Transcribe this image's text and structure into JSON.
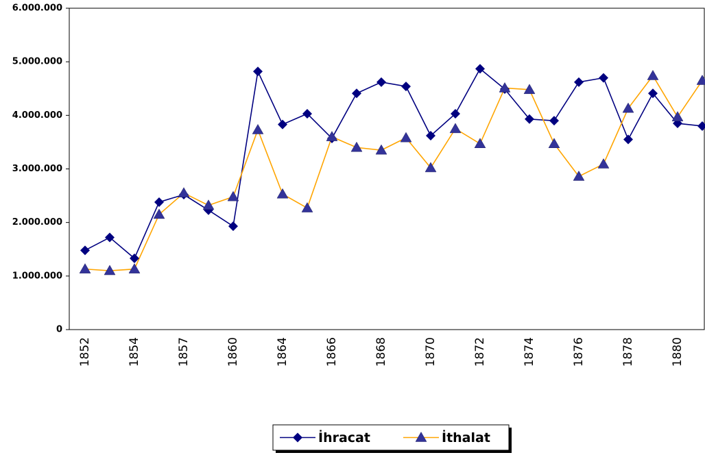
{
  "chart_data": {
    "type": "line",
    "categories": [
      "1852",
      null,
      "1854",
      null,
      "1857",
      null,
      "1860",
      null,
      "1864",
      null,
      "1866",
      null,
      "1868",
      null,
      "1870",
      null,
      "1872",
      null,
      "1874",
      null,
      "1876",
      null,
      "1878",
      null,
      "1880",
      null
    ],
    "series": [
      {
        "name": "İhracat",
        "color": "#000080",
        "marker": "diamond",
        "marker_color": "#000080",
        "values": [
          1480000,
          1720000,
          1330000,
          2380000,
          2520000,
          2230000,
          1930000,
          4820000,
          3830000,
          4030000,
          3570000,
          4410000,
          4620000,
          4540000,
          3620000,
          4030000,
          4870000,
          4490000,
          3930000,
          3900000,
          4620000,
          4700000,
          3550000,
          4410000,
          3850000,
          3800000
        ]
      },
      {
        "name": "İthalat",
        "color": "#FFA500",
        "marker": "triangle",
        "marker_color": "#333399",
        "values": [
          1130000,
          1100000,
          1130000,
          2150000,
          2550000,
          2320000,
          2480000,
          3730000,
          2530000,
          2270000,
          3600000,
          3400000,
          3350000,
          3580000,
          3020000,
          3750000,
          3470000,
          4510000,
          4480000,
          3470000,
          2860000,
          3090000,
          4130000,
          4740000,
          3970000,
          4650000
        ]
      }
    ],
    "ylim": [
      0,
      6000000
    ],
    "yticks": [
      0,
      {
        "value": 1000000,
        "label": "1.000.000"
      },
      {
        "value": 2000000,
        "label": "2.000.000"
      },
      {
        "value": 3000000,
        "label": "3.000.000"
      },
      {
        "value": 4000000,
        "label": "4.000.000"
      },
      {
        "value": 5000000,
        "label": "5.000.000"
      },
      {
        "value": 6000000,
        "label": "6.000.000"
      }
    ],
    "grid": false,
    "legend": "bottom"
  }
}
